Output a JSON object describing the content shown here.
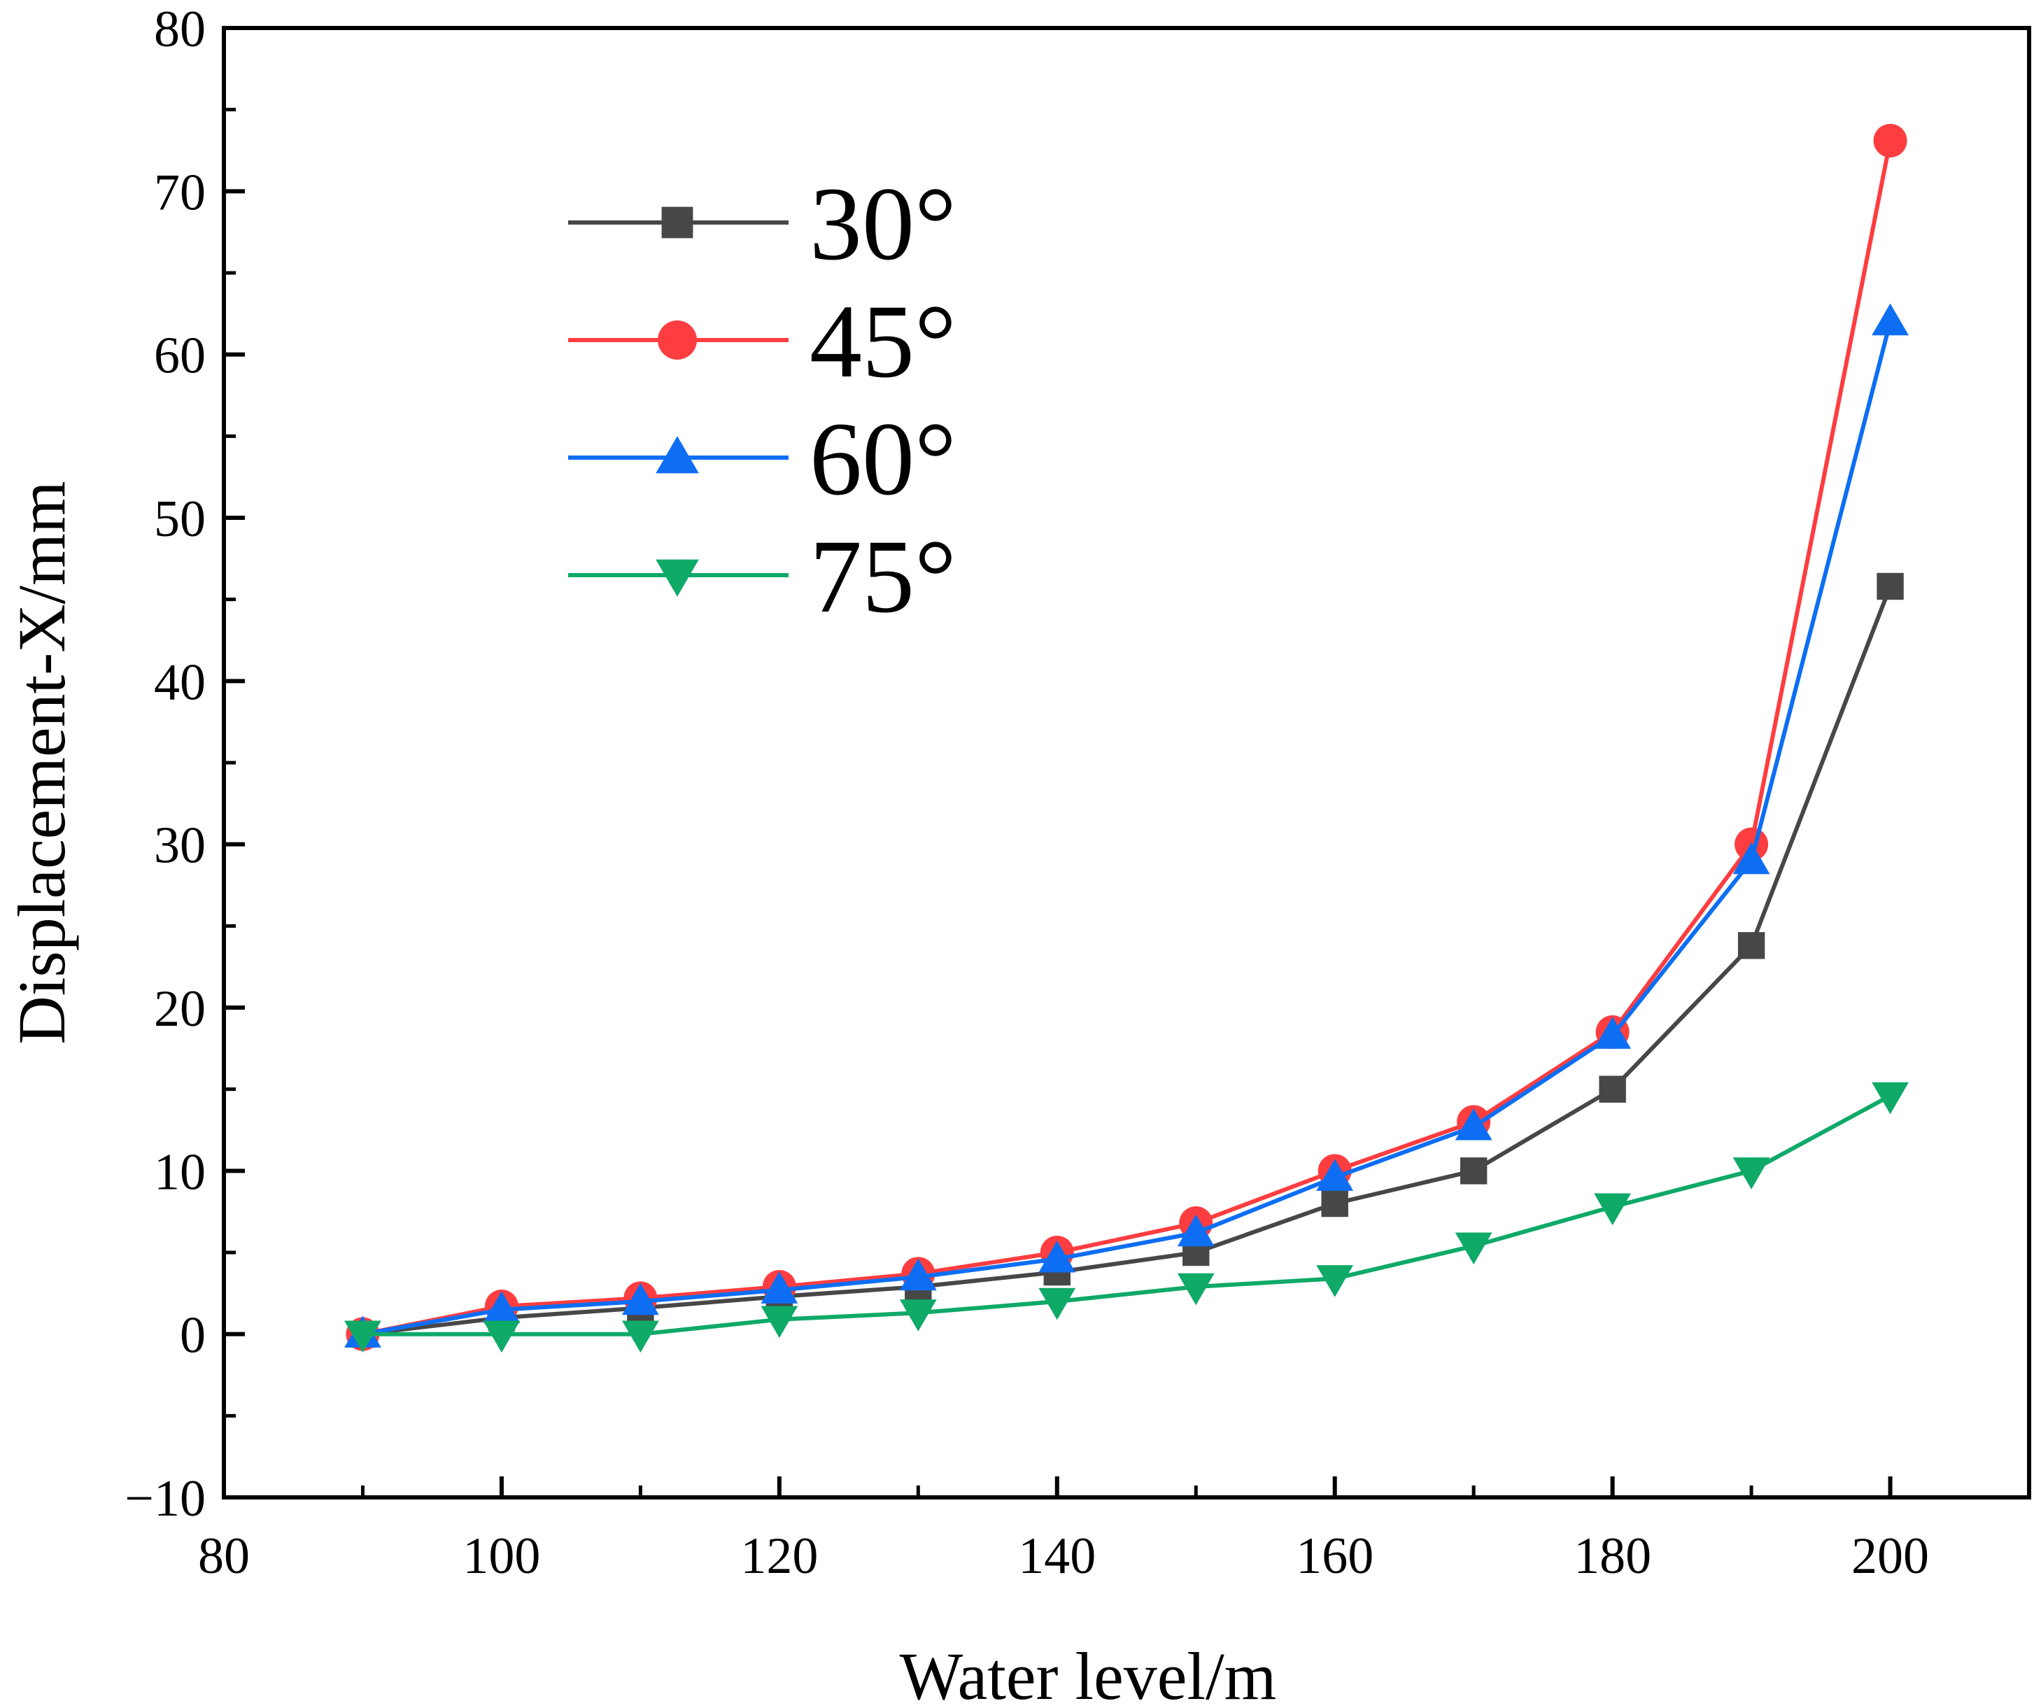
{
  "chart_data": {
    "type": "line",
    "title": "",
    "xlabel": "Water level/m",
    "ylabel": "Displacement-X/mm",
    "xlim": [
      80,
      210
    ],
    "ylim": [
      -10,
      80
    ],
    "x_ticks": [
      80,
      100,
      120,
      140,
      160,
      180,
      200
    ],
    "x_tick_labels": [
      "80",
      "100",
      "120",
      "140",
      "160",
      "180",
      "200"
    ],
    "y_ticks": [
      -10,
      0,
      10,
      20,
      30,
      40,
      50,
      60,
      70,
      80
    ],
    "y_tick_labels": [
      "−10",
      "0",
      "10",
      "20",
      "30",
      "40",
      "50",
      "60",
      "70",
      "80"
    ],
    "grid": false,
    "legend_position": "top-left",
    "x": [
      90,
      100,
      110,
      120,
      130,
      140,
      150,
      160,
      170,
      180,
      190,
      200
    ],
    "series": [
      {
        "name": "30°",
        "marker": "square",
        "color": "#474747",
        "values": [
          0,
          1.0,
          1.6,
          2.3,
          2.9,
          3.8,
          5.0,
          8.0,
          10.0,
          15.0,
          23.8,
          45.8
        ]
      },
      {
        "name": "45°",
        "marker": "circle",
        "color": "#fd3d40",
        "values": [
          0,
          1.7,
          2.2,
          2.9,
          3.7,
          5.0,
          6.8,
          10.0,
          13.0,
          18.5,
          30.0,
          73.1
        ]
      },
      {
        "name": "60°",
        "marker": "triangle-up",
        "color": "#0d6ef3",
        "values": [
          0,
          1.5,
          2.0,
          2.7,
          3.5,
          4.6,
          6.2,
          9.6,
          12.7,
          18.3,
          29.0,
          62.0
        ]
      },
      {
        "name": "75°",
        "marker": "triangle-down",
        "color": "#0fa968",
        "values": [
          0,
          0,
          0,
          0.9,
          1.3,
          2.0,
          2.9,
          3.4,
          5.4,
          7.8,
          10.0,
          14.6
        ]
      }
    ]
  }
}
